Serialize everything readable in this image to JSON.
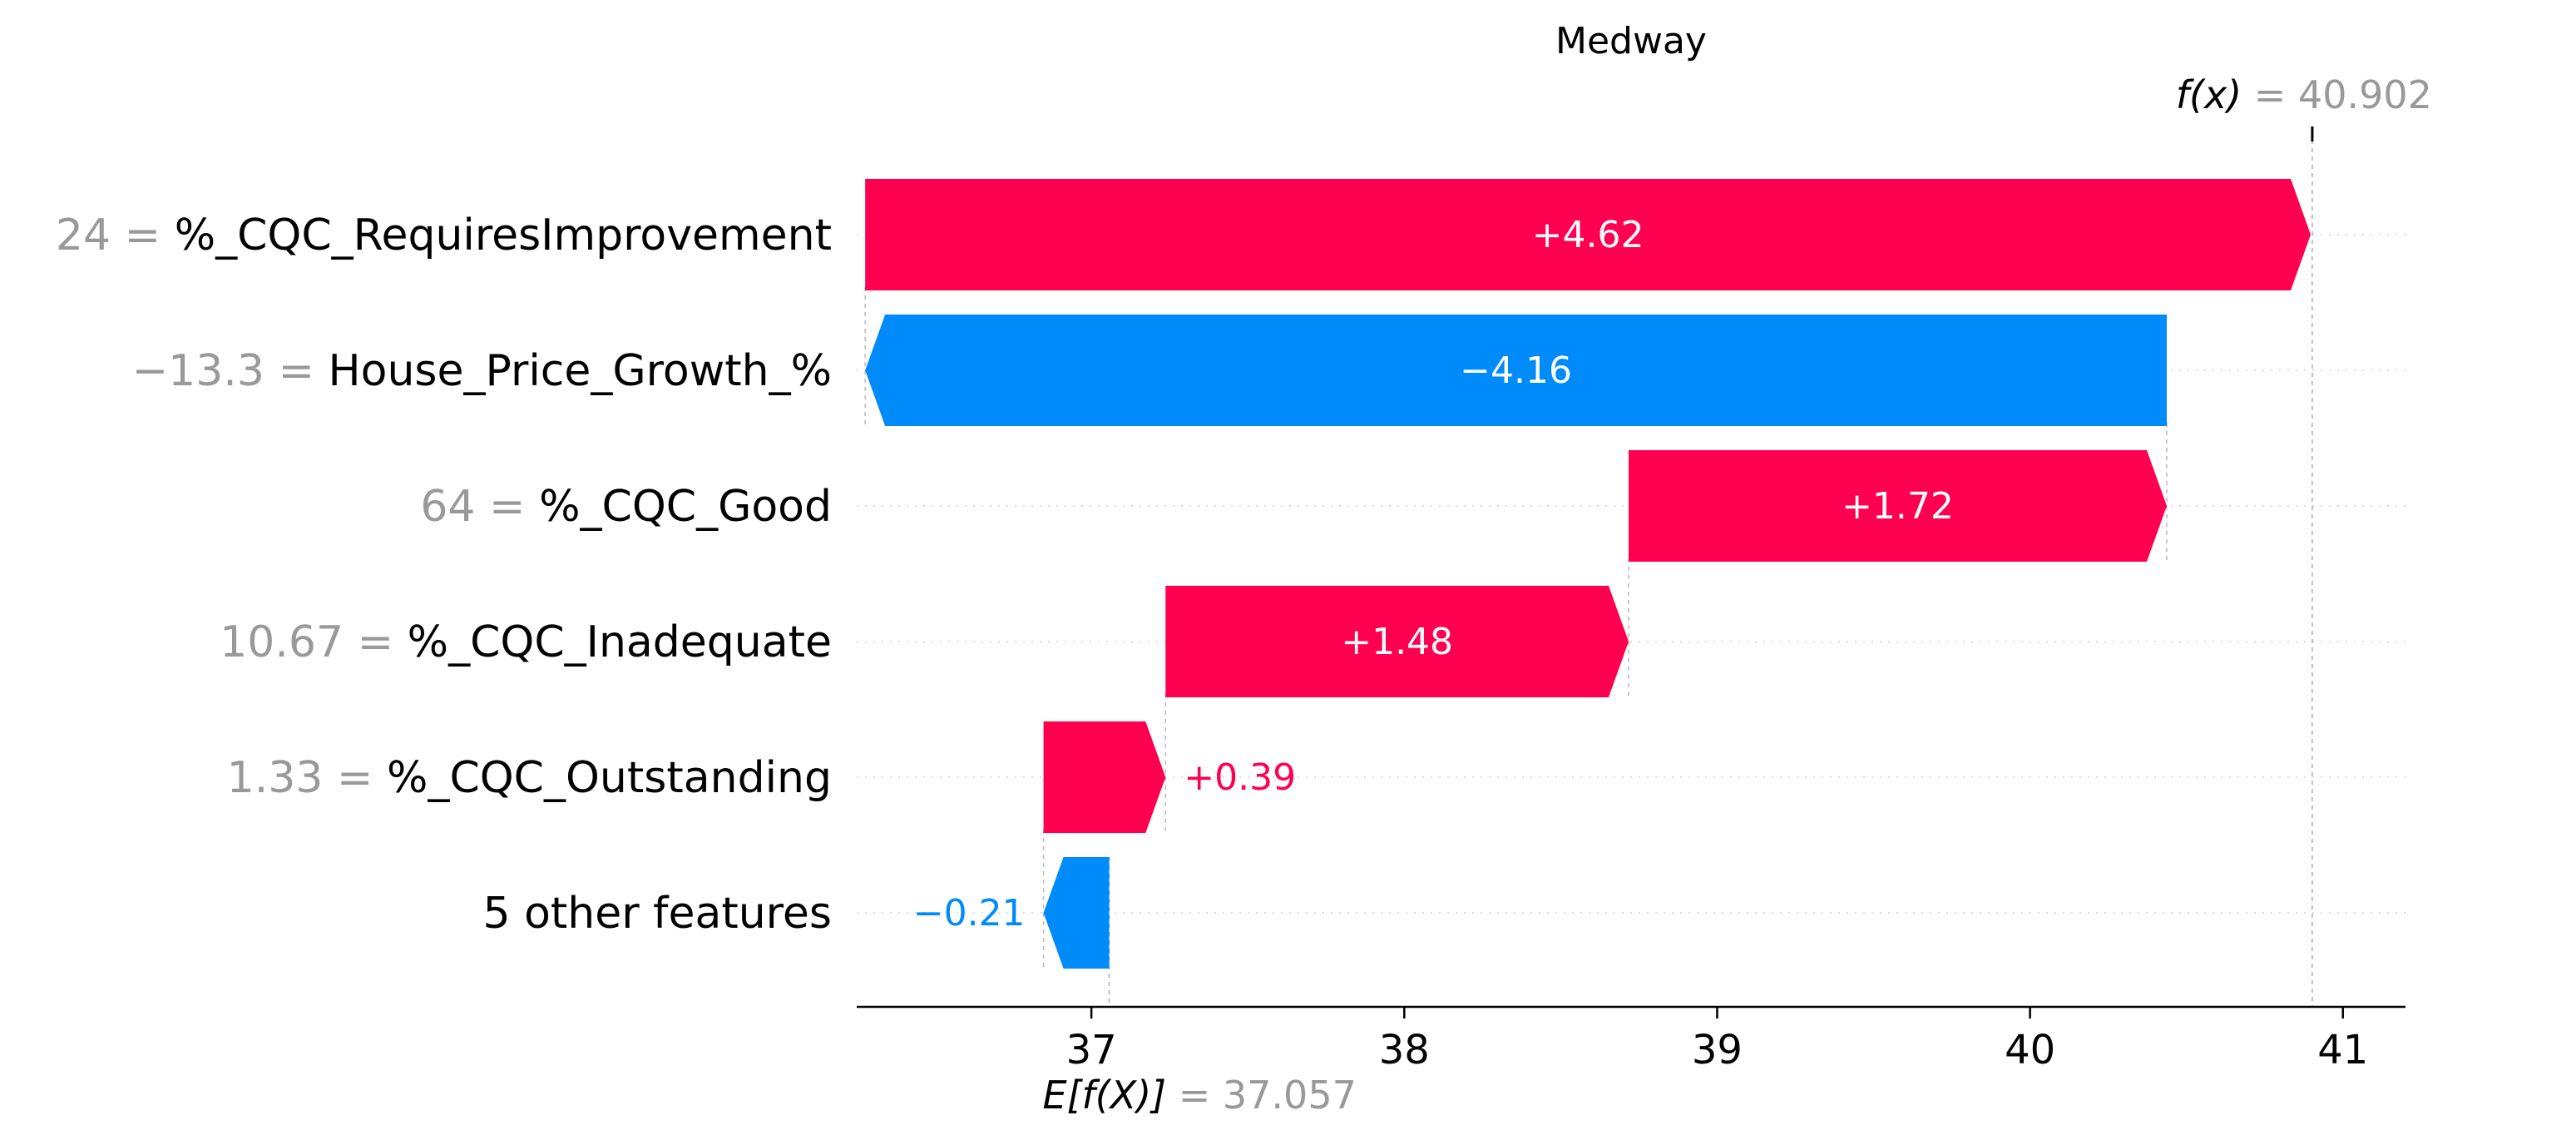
{
  "chart_data": {
    "type": "waterfall",
    "title": "Medway",
    "fx_label": "f(x)",
    "fx_value": "40.902",
    "ex_label": "E[f(X)]",
    "ex_value": "37.057",
    "base_value": 37.057,
    "final_value": 40.902,
    "xlim": [
      36.25,
      41.2
    ],
    "x_ticks": [
      37,
      38,
      39,
      40,
      41
    ],
    "x_tick_labels": [
      "37",
      "38",
      "39",
      "40",
      "41"
    ],
    "grid": "dotted-row-guides",
    "colors": {
      "positive": "#ff0051",
      "negative": "#008bfb",
      "feature_value": "#999999",
      "feature_name": "#000000"
    },
    "features": [
      {
        "value_label": "24",
        "name": "%_CQC_RequiresImprovement",
        "contribution": 4.62,
        "contribution_label": "+4.62"
      },
      {
        "value_label": "−13.3",
        "name": "House_Price_Growth_%",
        "contribution": -4.16,
        "contribution_label": "−4.16"
      },
      {
        "value_label": "64",
        "name": "%_CQC_Good",
        "contribution": 1.72,
        "contribution_label": "+1.72"
      },
      {
        "value_label": "10.67",
        "name": "%_CQC_Inadequate",
        "contribution": 1.48,
        "contribution_label": "+1.48"
      },
      {
        "value_label": "1.33",
        "name": "%_CQC_Outstanding",
        "contribution": 0.39,
        "contribution_label": "+0.39"
      },
      {
        "value_label": "",
        "name": "5 other features",
        "contribution": -0.21,
        "contribution_label": "−0.21"
      }
    ]
  }
}
